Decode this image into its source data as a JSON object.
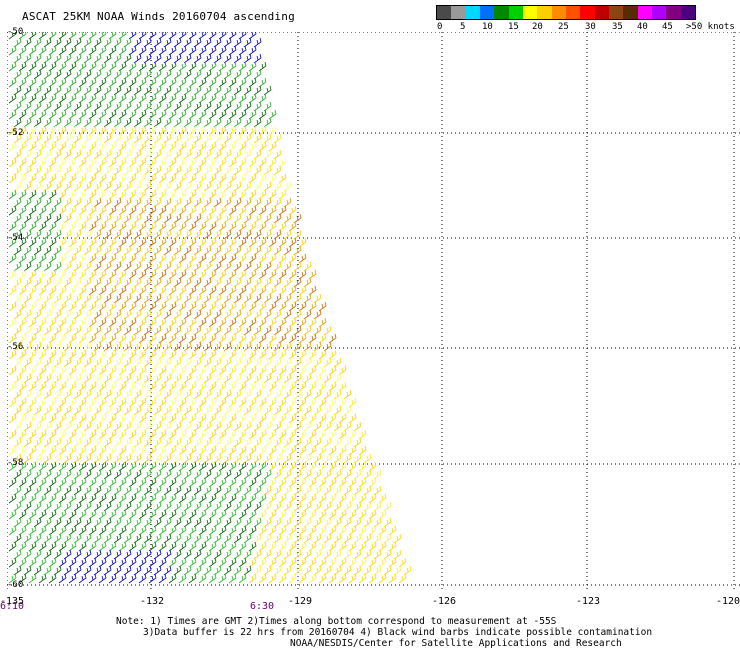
{
  "title": "ASCAT 25KM NOAA Winds 20160704 ascending",
  "legend": {
    "colors": [
      "#4a4a4a",
      "#9a9a9a",
      "#00d8ff",
      "#0070ff",
      "#008800",
      "#00d000",
      "#ffff00",
      "#ffd000",
      "#ff8c00",
      "#ff5000",
      "#ff0000",
      "#c00000",
      "#8b4513",
      "#5a2a00",
      "#ff00ff",
      "#b000ff",
      "#800080",
      "#4b0082"
    ],
    "labels": [
      "0",
      "5",
      "10",
      "15",
      "20",
      "25",
      "30",
      "35",
      "40",
      "45",
      ">50 knots"
    ]
  },
  "map": {
    "lat_labels": [
      "-50",
      "-52",
      "-54",
      "-56",
      "-58",
      "-60"
    ],
    "lon_labels": [
      "-135",
      "-132",
      "-129",
      "-126",
      "-123",
      "-120"
    ],
    "gridlines": "dotted"
  },
  "times": {
    "start": "6:10",
    "mid": "6:30"
  },
  "notes": {
    "line1": "Note: 1) Times are GMT 2)Times along bottom correspond to measurement at -55S",
    "line2": "3)Data buffer is 22 hrs from 20160704 4) Black wind barbs indicate possible contamination",
    "line3": "NOAA/NESDIS/Center for Satellite Applications and Research"
  }
}
